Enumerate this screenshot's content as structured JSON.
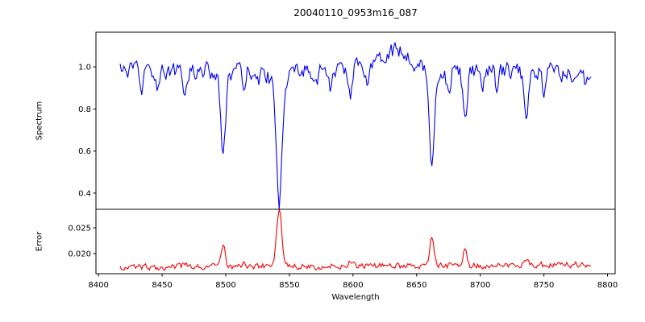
{
  "chart_data": {
    "type": "line",
    "title": "20040110_0953m16_087",
    "xlabel": "Wavelength",
    "x_range": [
      8398,
      8806
    ],
    "x_ticks": [
      8400,
      8450,
      8500,
      8550,
      8600,
      8650,
      8700,
      8750,
      8800
    ],
    "x_tick_labels": [
      "8400",
      "8450",
      "8500",
      "8550",
      "8600",
      "8650",
      "8700",
      "8750",
      "8800"
    ],
    "x_start": 8417,
    "x_end": 8787,
    "x_step": 1,
    "grid": false,
    "legend": "none",
    "panels": [
      {
        "name": "spectrum",
        "ylabel": "Spectrum",
        "line_color": "#0000f2",
        "ylim": [
          0.323,
          1.165
        ],
        "y_ticks": [
          0.4,
          0.6,
          0.8,
          1.0
        ],
        "y_tick_labels": [
          "0.4",
          "0.6",
          "0.8",
          "1.0"
        ],
        "continuum": {
          "level": 0.982,
          "bump_center": 8634,
          "bump_amplitude": 0.095,
          "bump_sigma": 16
        },
        "noise": {
          "amplitude": 0.07,
          "persistence": 0.35,
          "seed": 12345
        },
        "absorption_lines": [
          [
            8434,
            0.1,
            1.3
          ],
          [
            8446,
            0.07,
            1.2
          ],
          [
            8468,
            0.11,
            1.5
          ],
          [
            8498,
            0.36,
            1.8
          ],
          [
            8498,
            0.05,
            4.0
          ],
          [
            8514,
            0.09,
            1.3
          ],
          [
            8526,
            0.06,
            1.2
          ],
          [
            8542,
            0.52,
            2.0
          ],
          [
            8542,
            0.1,
            5.5
          ],
          [
            8559,
            0.05,
            1.2
          ],
          [
            8571,
            0.05,
            1.2
          ],
          [
            8582,
            0.09,
            1.3
          ],
          [
            8598,
            0.11,
            1.4
          ],
          [
            8611,
            0.08,
            1.3
          ],
          [
            8648,
            0.09,
            1.3
          ],
          [
            8662,
            0.44,
            1.9
          ],
          [
            8662,
            0.06,
            4.5
          ],
          [
            8675,
            0.12,
            1.3
          ],
          [
            8688,
            0.26,
            1.6
          ],
          [
            8702,
            0.08,
            1.2
          ],
          [
            8713,
            0.11,
            1.3
          ],
          [
            8736,
            0.21,
            1.6
          ],
          [
            8750,
            0.11,
            1.3
          ],
          [
            8763,
            0.07,
            1.2
          ],
          [
            8772,
            0.09,
            1.2
          ],
          [
            8783,
            0.06,
            1.2
          ]
        ]
      },
      {
        "name": "error",
        "ylabel": "Error",
        "line_color": "#f20000",
        "ylim": [
          0.0161,
          0.0286
        ],
        "y_ticks": [
          0.02,
          0.025
        ],
        "y_tick_labels": [
          "0.020",
          "0.025"
        ],
        "baseline": {
          "level": 0.01735,
          "slope_per_angstrom": 1.3e-06
        },
        "noise": {
          "amplitude": 0.0011,
          "persistence": 0.35,
          "seed": 777
        },
        "peaks": [
          [
            8468,
            0.0006,
            1.4
          ],
          [
            8498,
            0.0046,
            1.5
          ],
          [
            8514,
            0.0007,
            1.4
          ],
          [
            8542,
            0.0097,
            1.9
          ],
          [
            8542,
            0.0013,
            5.0
          ],
          [
            8598,
            0.0007,
            1.4
          ],
          [
            8662,
            0.0058,
            1.7
          ],
          [
            8688,
            0.0029,
            1.4
          ],
          [
            8736,
            0.0013,
            1.4
          ]
        ]
      }
    ]
  }
}
